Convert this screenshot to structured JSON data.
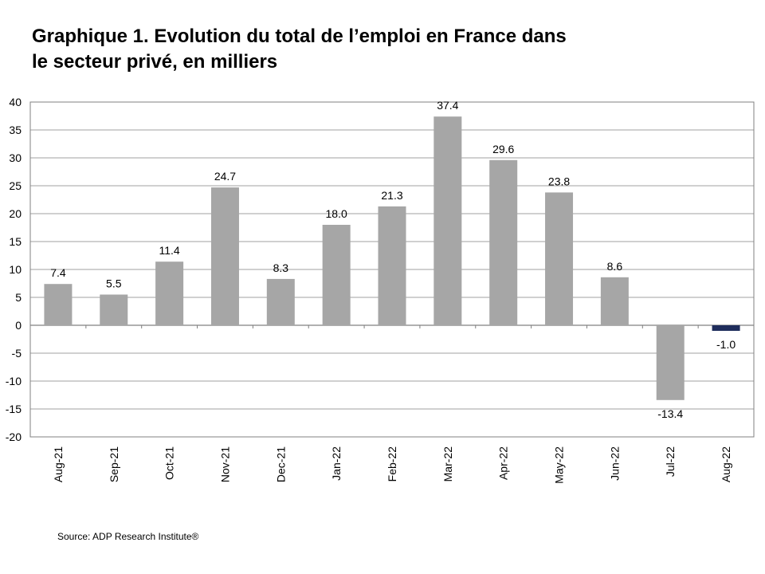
{
  "chart_data": {
    "type": "bar",
    "title_lines": [
      "Graphique 1. Evolution du total de l’emploi en France dans",
      "le secteur privé, en milliers"
    ],
    "categories": [
      "Aug-21",
      "Sep-21",
      "Oct-21",
      "Nov-21",
      "Dec-21",
      "Jan-22",
      "Feb-22",
      "Mar-22",
      "Apr-22",
      "May-22",
      "Jun-22",
      "Jul-22",
      "Aug-22"
    ],
    "values": [
      7.4,
      5.5,
      11.4,
      24.7,
      8.3,
      18.0,
      21.3,
      37.4,
      29.6,
      23.8,
      8.6,
      -13.4,
      -1.0
    ],
    "data_labels": [
      "7.4",
      "5.5",
      "11.4",
      "24.7",
      "8.3",
      "18.0",
      "21.3",
      "37.4",
      "29.6",
      "23.8",
      "8.6",
      "-13.4",
      "-1.0"
    ],
    "yticks": [
      40,
      35,
      30,
      25,
      20,
      15,
      10,
      5,
      0,
      -5,
      -10,
      -15,
      -20
    ],
    "ylim": [
      -20,
      40
    ],
    "xlabel": "",
    "ylabel": "",
    "grid": true,
    "legend": "none",
    "colors": {
      "bar": "#a6a6a6",
      "highlight": "#1f2d5c",
      "grid": "#a0a0a0"
    },
    "highlight_index": 12
  },
  "source": "Source: ADP Research Institute®"
}
